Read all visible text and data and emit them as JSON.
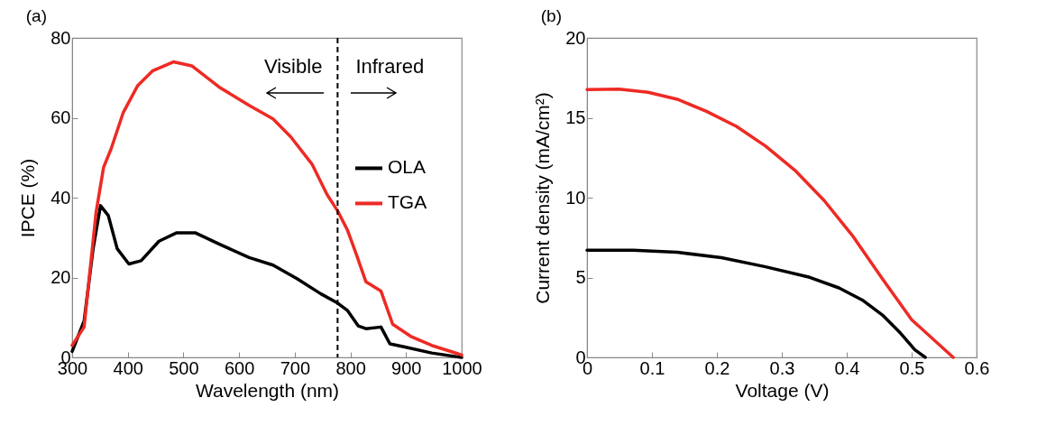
{
  "chart_data": [
    {
      "type": "line",
      "title": "(a)",
      "xlabel": "Wavelength (nm)",
      "ylabel": "IPCE (%)",
      "xlim": [
        300,
        1000
      ],
      "ylim": [
        0,
        80
      ],
      "xticks": [
        300,
        400,
        500,
        600,
        700,
        800,
        900,
        1000
      ],
      "yticks": [
        0,
        20,
        40,
        60,
        80
      ],
      "grid": false,
      "legend": "right",
      "series": [
        {
          "name": "OLA",
          "color": "#000000",
          "x": [
            300,
            321.5,
            337.7,
            351,
            365,
            381,
            402,
            424,
            456,
            488,
            521,
            564,
            618,
            661,
            704,
            747,
            777,
            795,
            814,
            828,
            855,
            871,
            898,
            946,
            1000
          ],
          "values": [
            1.5,
            9.1,
            27.2,
            38,
            35.5,
            27.2,
            23.4,
            24.2,
            29.1,
            31.2,
            31.2,
            28.4,
            25,
            23.1,
            19.7,
            15.9,
            13.6,
            11.7,
            7.9,
            7.2,
            7.6,
            3.4,
            2.6,
            1.1,
            0
          ]
        },
        {
          "name": "TGA",
          "color": "#ee2a24",
          "x": [
            300,
            321.5,
            343,
            356.5,
            370,
            391.5,
            418,
            445,
            482,
            515,
            564,
            618,
            661,
            693,
            731,
            758,
            777,
            795,
            811,
            828,
            855,
            876,
            908,
            946,
            1000
          ],
          "values": [
            3,
            7.6,
            36.3,
            47.6,
            52.2,
            61.2,
            68.1,
            71.8,
            74,
            73,
            67.7,
            63.1,
            59.7,
            55.2,
            48.4,
            40.8,
            36.7,
            31.8,
            25.7,
            18.9,
            16.6,
            8.3,
            5.3,
            3,
            0.6
          ]
        }
      ],
      "ref_lines": [
        {
          "axis": "x",
          "value": 777,
          "color": "#000000",
          "line_style": "dashed"
        }
      ],
      "annotations": [
        "Visible",
        "Infrared"
      ]
    },
    {
      "type": "line",
      "title": "(b)",
      "xlabel": "Voltage (V)",
      "ylabel": "Current density (mA/cm²)",
      "xlim": [
        0,
        0.6
      ],
      "ylim": [
        0,
        20
      ],
      "xticks": [
        0,
        0.1,
        0.2,
        0.3,
        0.4,
        0.5,
        0.6
      ],
      "yticks": [
        0,
        5,
        10,
        15,
        20
      ],
      "grid": false,
      "legend": "top right",
      "series": [
        {
          "name": "OLA",
          "color": "#000000",
          "x": [
            0,
            0.071,
            0.139,
            0.207,
            0.275,
            0.343,
            0.388,
            0.424,
            0.455,
            0.483,
            0.505,
            0.521
          ],
          "values": [
            6.71,
            6.71,
            6.58,
            6.24,
            5.67,
            5.01,
            4.35,
            3.59,
            2.65,
            1.51,
            0.47,
            0
          ]
        },
        {
          "name": "TGA",
          "color": "#ee2a24",
          "x": [
            0,
            0.049,
            0.094,
            0.139,
            0.184,
            0.23,
            0.275,
            0.32,
            0.365,
            0.41,
            0.455,
            0.5,
            0.564
          ],
          "values": [
            16.77,
            16.8,
            16.6,
            16.16,
            15.4,
            14.46,
            13.23,
            11.72,
            9.83,
            7.56,
            4.91,
            2.36,
            0
          ]
        }
      ]
    }
  ]
}
